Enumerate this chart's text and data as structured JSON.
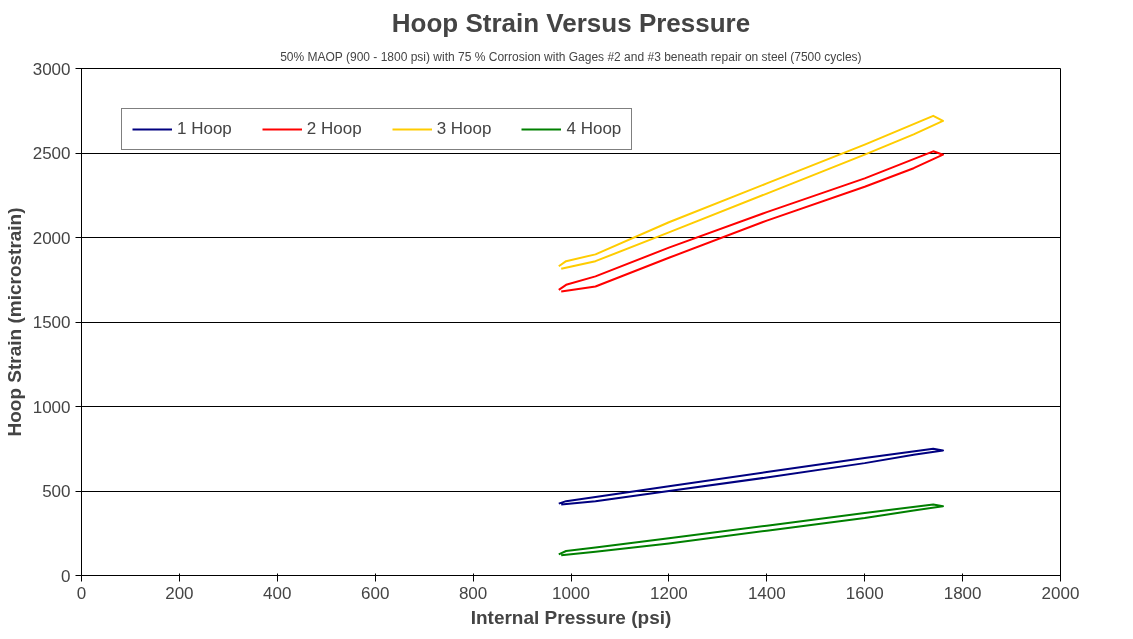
{
  "chart_data": {
    "type": "line",
    "title": "Hoop Strain Versus Pressure",
    "subtitle": "50% MAOP (900 - 1800 psi) with 75 % Corrosion with Gages #2 and #3 beneath repair on steel (7500 cycles)",
    "xlabel": "Internal Pressure (psi)",
    "ylabel": "Hoop Strain (microstrain)",
    "xlim": [
      0,
      2000
    ],
    "ylim": [
      0,
      3000
    ],
    "xticks": [
      0,
      200,
      400,
      600,
      800,
      1000,
      1200,
      1400,
      1600,
      1800,
      2000
    ],
    "yticks": [
      0,
      500,
      1000,
      1500,
      2000,
      2500,
      3000
    ],
    "grid": "y",
    "legend": "top left",
    "marker": "none",
    "line_style": "solid",
    "series": [
      {
        "name": "1 Hoop",
        "color": "#000080",
        "x": [
          980,
          1050,
          1200,
          1400,
          1600,
          1700,
          1760,
          1740,
          1600,
          1400,
          1200,
          1050,
          990,
          975
        ],
        "values": [
          420,
          440,
          500,
          580,
          665,
          715,
          740,
          750,
          695,
          612,
          528,
          465,
          440,
          425
        ]
      },
      {
        "name": "2 Hoop",
        "color": "#ff0000",
        "x": [
          980,
          1050,
          1200,
          1400,
          1600,
          1700,
          1760,
          1740,
          1600,
          1400,
          1200,
          1050,
          990,
          975
        ],
        "values": [
          1680,
          1710,
          1880,
          2100,
          2300,
          2410,
          2490,
          2510,
          2350,
          2150,
          1940,
          1770,
          1720,
          1690
        ]
      },
      {
        "name": "3 Hoop",
        "color": "#ffcc00",
        "x": [
          980,
          1050,
          1200,
          1400,
          1600,
          1700,
          1760,
          1740,
          1600,
          1400,
          1200,
          1050,
          990,
          975
        ],
        "values": [
          1815,
          1860,
          2030,
          2260,
          2490,
          2610,
          2690,
          2720,
          2550,
          2320,
          2090,
          1900,
          1860,
          1830
        ]
      },
      {
        "name": "4 Hoop",
        "color": "#008000",
        "x": [
          980,
          1050,
          1200,
          1400,
          1600,
          1700,
          1760,
          1740,
          1600,
          1400,
          1200,
          1050,
          990,
          975
        ],
        "values": [
          120,
          140,
          190,
          265,
          340,
          385,
          410,
          420,
          370,
          295,
          220,
          165,
          145,
          125
        ]
      }
    ]
  }
}
